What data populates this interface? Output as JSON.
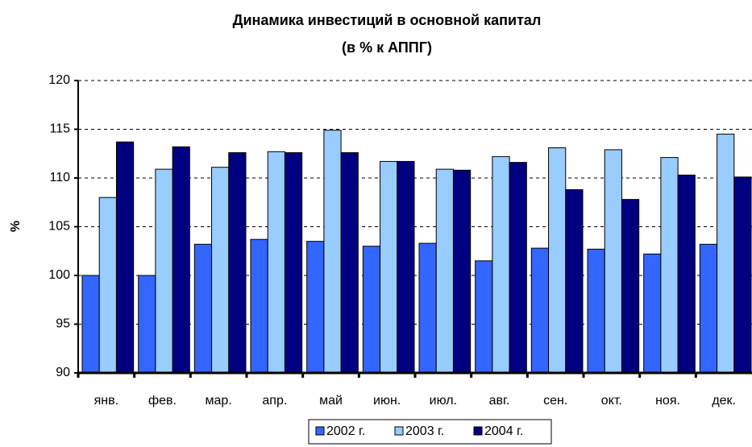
{
  "chart_data": {
    "type": "bar",
    "title": "Динамика инвестиций в основной капитал",
    "subtitle": "(в % к АППГ)",
    "y_label": "%",
    "categories": [
      "янв.",
      "фев.",
      "мар.",
      "апр.",
      "май",
      "июн.",
      "июл.",
      "авг.",
      "сен.",
      "окт.",
      "ноя.",
      "дек."
    ],
    "series": [
      {
        "name": "2002 г.",
        "color": "#3366ff",
        "values": [
          100,
          100,
          103.2,
          103.7,
          103.5,
          103,
          103.3,
          101.5,
          102.8,
          102.7,
          102.2,
          103.2
        ]
      },
      {
        "name": "2003 г.",
        "color": "#99ccff",
        "values": [
          108,
          110.9,
          111.1,
          112.7,
          114.9,
          111.7,
          110.9,
          112.2,
          113.1,
          112.9,
          112.1,
          114.5
        ]
      },
      {
        "name": "2004 г.",
        "color": "#000080",
        "values": [
          113.7,
          113.2,
          112.6,
          112.6,
          112.6,
          111.7,
          110.8,
          111.6,
          108.8,
          107.8,
          110.3,
          110.1
        ]
      }
    ],
    "ylim": [
      90,
      120
    ],
    "yticks": [
      90,
      95,
      100,
      105,
      110,
      115,
      120
    ],
    "grid": true,
    "legend": "bottom"
  }
}
